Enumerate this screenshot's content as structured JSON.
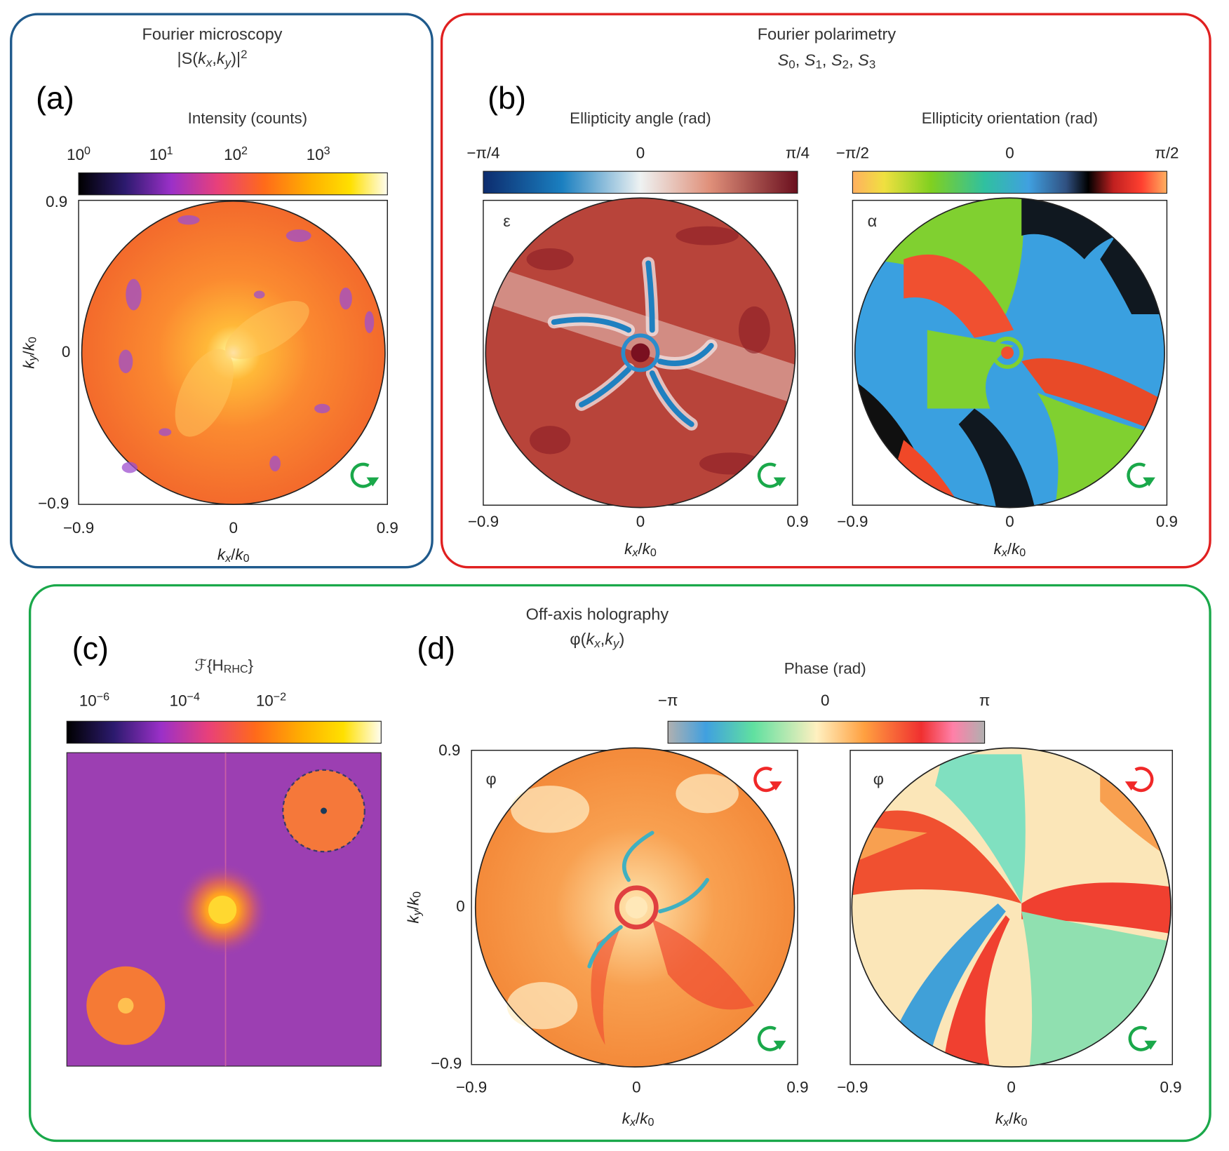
{
  "a": {
    "title": "Fourier microscopy",
    "subtitle": [
      "|S(",
      {
        "i": "k"
      },
      {
        "sub": "x"
      },
      ",",
      {
        "i": "k"
      },
      {
        "sub": "y"
      },
      ")|",
      {
        "sup": "2"
      }
    ],
    "label": "(a)",
    "colorbar": {
      "title": "Intensity (counts)",
      "ticks": [
        [
          "10",
          {
            "sup": "0"
          }
        ],
        [
          "10",
          {
            "sup": "1"
          }
        ],
        [
          "10",
          {
            "sup": "2"
          }
        ],
        [
          "10",
          {
            "sup": "3"
          }
        ]
      ]
    },
    "yticks": [
      "0.9",
      "0",
      "−0.9"
    ],
    "xticks": [
      "−0.9",
      "0",
      "0.9"
    ],
    "xlabel": [
      {
        "i": "k"
      },
      {
        "sub": "x"
      },
      "/",
      {
        "i": "k"
      },
      {
        "sub": "0"
      }
    ],
    "ylabel": [
      {
        "i": "k"
      },
      {
        "sub": "y"
      },
      "/",
      {
        "i": "k"
      },
      {
        "sub": "0"
      }
    ]
  },
  "b": {
    "title": "Fourier polarimetry",
    "subtitle": [
      {
        "i": "S"
      },
      {
        "sub": "0"
      },
      ", ",
      {
        "i": "S"
      },
      {
        "sub": "1"
      },
      ", ",
      {
        "i": "S"
      },
      {
        "sub": "2"
      },
      ", ",
      {
        "i": "S"
      },
      {
        "sub": "3"
      }
    ],
    "label": "(b)",
    "plots": [
      {
        "colorbar": {
          "title": "Ellipticity angle (rad)",
          "ticks": [
            "−π/4",
            "0",
            "π/4"
          ]
        },
        "symbol": "ε",
        "xticks": [
          "−0.9",
          "0",
          "0.9"
        ],
        "xlabel": [
          {
            "i": "k"
          },
          {
            "sub": "x"
          },
          "/",
          {
            "i": "k"
          },
          {
            "sub": "0"
          }
        ]
      },
      {
        "colorbar": {
          "title": "Ellipticity orientation (rad)",
          "ticks": [
            "−π/2",
            "0",
            "π/2"
          ]
        },
        "symbol": "α",
        "xticks": [
          "−0.9",
          "0",
          "0.9"
        ],
        "xlabel": [
          {
            "i": "k"
          },
          {
            "sub": "x"
          },
          "/",
          {
            "i": "k"
          },
          {
            "sub": "0"
          }
        ]
      }
    ]
  },
  "c": {
    "title": "Off-axis holography",
    "subtitle": [
      "φ(",
      {
        "i": "k"
      },
      {
        "sub": "x"
      },
      ",",
      {
        "i": "k"
      },
      {
        "sub": "y"
      },
      ")"
    ],
    "label": "(c)",
    "colorbar": {
      "title": [
        "ℱ",
        "{H",
        {
          "sub": "RHC"
        },
        "}"
      ],
      "ticks": [
        [
          "10",
          {
            "sup": "−6"
          }
        ],
        [
          "10",
          {
            "sup": "−4"
          }
        ],
        [
          "10",
          {
            "sup": "−2"
          }
        ]
      ]
    }
  },
  "d": {
    "label": "(d)",
    "colorbar": {
      "title": "Phase (rad)",
      "ticks": [
        "−π",
        "0",
        "π"
      ]
    },
    "yticks": [
      "0.9",
      "0",
      "−0.9"
    ],
    "ylabel": [
      {
        "i": "k"
      },
      {
        "sub": "y"
      },
      "/",
      {
        "i": "k"
      },
      {
        "sub": "0"
      }
    ],
    "plots": [
      {
        "symbol": "φ",
        "xticks": [
          "−0.9",
          "0",
          "0.9"
        ],
        "xlabel": [
          {
            "i": "k"
          },
          {
            "sub": "x"
          },
          "/",
          {
            "i": "k"
          },
          {
            "sub": "0"
          }
        ]
      },
      {
        "symbol": "φ",
        "xticks": [
          "−0.9",
          "0",
          "0.9"
        ],
        "xlabel": [
          {
            "i": "k"
          },
          {
            "sub": "x"
          },
          "/",
          {
            "i": "k"
          },
          {
            "sub": "0"
          }
        ]
      }
    ]
  }
}
